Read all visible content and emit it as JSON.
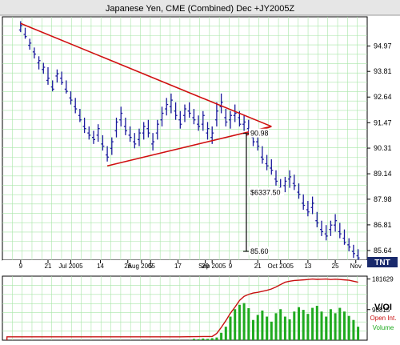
{
  "chart_data": [
    {
      "type": "ohlc",
      "title": "Japanese Yen, CME (Combined) Dec +JY2005Z",
      "logo": "TNT",
      "y_ticks": [
        "94.97",
        "93.81",
        "92.64",
        "91.47",
        "90.31",
        "89.14",
        "87.98",
        "86.81",
        "85.64"
      ],
      "y_tick_values": [
        94.97,
        93.81,
        92.64,
        91.47,
        90.31,
        89.14,
        87.98,
        86.81,
        85.64
      ],
      "ylim": [
        85.2,
        96.3
      ],
      "x_ticks": [
        {
          "label": "9",
          "day": 0
        },
        {
          "label": "21",
          "day": 12
        },
        {
          "label": "Jul 2005",
          "day": 22
        },
        {
          "label": "14",
          "day": 35
        },
        {
          "label": "26",
          "day": 47
        },
        {
          "label": "Aug 2005",
          "day": 53
        },
        {
          "label": "5",
          "day": 57
        },
        {
          "label": "17",
          "day": 69
        },
        {
          "label": "29",
          "day": 81
        },
        {
          "label": "9",
          "day": 92
        },
        {
          "label": "Sep 2005",
          "day": 84
        },
        {
          "label": "21",
          "day": 104
        },
        {
          "label": "Oct 2005",
          "day": 114
        },
        {
          "label": "13",
          "day": 126
        },
        {
          "label": "25",
          "day": 138
        },
        {
          "label": "Nov",
          "day": 147
        }
      ],
      "xlim": [
        -8,
        152
      ],
      "grid": true,
      "colors": {
        "bars": "#1a1a9c",
        "grid": "#a8e6a8",
        "trendline": "#d01010",
        "frame": "#000000"
      },
      "ohlc": [
        [
          0,
          95.7,
          96.1,
          95.6,
          95.9
        ],
        [
          2,
          95.5,
          95.8,
          95.3,
          95.4
        ],
        [
          4,
          95.0,
          95.3,
          94.8,
          95.1
        ],
        [
          6,
          94.7,
          94.9,
          94.4,
          94.6
        ],
        [
          8,
          94.2,
          94.5,
          93.9,
          94.3
        ],
        [
          10,
          93.9,
          94.2,
          93.7,
          94.0
        ],
        [
          12,
          93.4,
          94.0,
          93.2,
          93.5
        ],
        [
          14,
          93.1,
          93.4,
          92.9,
          93.0
        ],
        [
          16,
          93.6,
          93.9,
          93.3,
          93.7
        ],
        [
          18,
          93.5,
          93.8,
          93.2,
          93.3
        ],
        [
          20,
          93.0,
          93.4,
          92.8,
          92.9
        ],
        [
          22,
          92.6,
          92.9,
          92.3,
          92.5
        ],
        [
          24,
          92.2,
          92.6,
          91.9,
          92.1
        ],
        [
          26,
          91.8,
          92.1,
          91.5,
          91.6
        ],
        [
          28,
          91.3,
          91.7,
          91.0,
          91.2
        ],
        [
          30,
          91.0,
          91.3,
          90.7,
          90.9
        ],
        [
          32,
          90.8,
          91.1,
          90.5,
          90.7
        ],
        [
          34,
          90.9,
          91.4,
          90.6,
          91.2
        ],
        [
          36,
          90.5,
          90.9,
          90.2,
          90.4
        ],
        [
          38,
          90.0,
          90.4,
          89.7,
          89.9
        ],
        [
          40,
          90.3,
          90.8,
          90.0,
          90.6
        ],
        [
          42,
          91.1,
          91.7,
          90.8,
          91.5
        ],
        [
          44,
          91.6,
          92.2,
          91.3,
          91.9
        ],
        [
          46,
          91.3,
          91.7,
          90.9,
          91.1
        ],
        [
          48,
          90.9,
          91.3,
          90.6,
          90.8
        ],
        [
          50,
          90.6,
          91.0,
          90.3,
          90.5
        ],
        [
          52,
          90.7,
          91.2,
          90.4,
          91.0
        ],
        [
          54,
          91.0,
          91.5,
          90.7,
          91.3
        ],
        [
          56,
          91.2,
          91.6,
          90.8,
          91.0
        ],
        [
          58,
          90.5,
          91.0,
          90.2,
          90.6
        ],
        [
          60,
          91.0,
          91.6,
          90.7,
          91.4
        ],
        [
          62,
          91.6,
          92.2,
          91.3,
          91.9
        ],
        [
          64,
          92.1,
          92.6,
          91.8,
          92.3
        ],
        [
          66,
          92.2,
          92.8,
          91.9,
          92.5
        ],
        [
          68,
          92.0,
          92.4,
          91.6,
          91.8
        ],
        [
          70,
          91.6,
          92.0,
          91.2,
          91.4
        ],
        [
          72,
          91.8,
          92.3,
          91.5,
          92.1
        ],
        [
          74,
          92.0,
          92.4,
          91.7,
          91.9
        ],
        [
          76,
          91.7,
          92.1,
          91.4,
          91.6
        ],
        [
          78,
          91.4,
          91.8,
          91.1,
          91.3
        ],
        [
          80,
          91.4,
          92.0,
          91.1,
          91.8
        ],
        [
          82,
          91.0,
          91.5,
          90.7,
          91.2
        ],
        [
          84,
          90.8,
          91.3,
          90.5,
          91.0
        ],
        [
          86,
          91.6,
          92.4,
          91.3,
          92.0
        ],
        [
          88,
          92.2,
          92.8,
          91.9,
          92.4
        ],
        [
          90,
          91.7,
          92.1,
          91.3,
          91.5
        ],
        [
          92,
          91.6,
          92.0,
          91.2,
          91.8
        ],
        [
          94,
          91.8,
          92.3,
          91.5,
          91.9
        ],
        [
          96,
          91.7,
          92.0,
          91.3,
          91.4
        ],
        [
          98,
          91.4,
          91.8,
          91.1,
          91.5
        ],
        [
          100,
          91.2,
          91.6,
          90.9,
          91.0
        ],
        [
          102,
          90.8,
          91.1,
          90.4,
          90.6
        ],
        [
          104,
          90.6,
          90.9,
          90.2,
          90.4
        ],
        [
          106,
          89.9,
          90.4,
          89.6,
          89.8
        ],
        [
          108,
          89.6,
          90.0,
          89.3,
          89.5
        ],
        [
          110,
          89.4,
          89.8,
          89.1,
          89.3
        ],
        [
          112,
          88.9,
          89.3,
          88.6,
          88.8
        ],
        [
          114,
          88.5,
          88.9,
          88.2,
          88.4
        ],
        [
          116,
          88.6,
          89.0,
          88.3,
          88.8
        ],
        [
          118,
          88.9,
          89.3,
          88.5,
          89.0
        ],
        [
          120,
          88.7,
          89.1,
          88.4,
          88.6
        ],
        [
          122,
          88.3,
          88.7,
          88.0,
          88.2
        ],
        [
          124,
          87.8,
          88.2,
          87.5,
          87.7
        ],
        [
          126,
          87.5,
          87.9,
          87.2,
          87.4
        ],
        [
          128,
          87.6,
          88.1,
          87.3,
          87.8
        ],
        [
          130,
          87.0,
          87.4,
          86.7,
          86.9
        ],
        [
          132,
          86.6,
          87.0,
          86.3,
          86.5
        ],
        [
          134,
          86.4,
          86.8,
          86.1,
          86.3
        ],
        [
          136,
          86.6,
          87.0,
          86.3,
          86.8
        ],
        [
          138,
          86.8,
          87.3,
          86.5,
          87.0
        ],
        [
          140,
          86.5,
          86.9,
          86.2,
          86.4
        ],
        [
          142,
          86.2,
          86.6,
          85.9,
          86.0
        ],
        [
          144,
          85.9,
          86.2,
          85.6,
          85.8
        ],
        [
          146,
          85.6,
          85.9,
          85.3,
          85.5
        ],
        [
          148,
          85.4,
          85.7,
          85.1,
          85.3
        ]
      ],
      "trendlines": [
        {
          "from": [
            0,
            96.0
          ],
          "to": [
            110,
            91.3
          ]
        },
        {
          "from": [
            38,
            89.5
          ],
          "to": [
            110,
            91.3
          ]
        },
        {
          "from": [
            99,
            90.9
          ],
          "to": [
            110,
            91.3
          ]
        }
      ],
      "measure": {
        "day": 99,
        "from": 90.98,
        "to": 85.6,
        "top_label": "90.98",
        "bottom_label": "85.60",
        "range_label": "$6337.50"
      }
    },
    {
      "type": "volume_oi",
      "title": "V/OI",
      "legend": [
        "Open Int.",
        "Volume"
      ],
      "y_ticks": [
        "181629",
        "90815"
      ],
      "y_tick_values": [
        181629,
        90815
      ],
      "ylim": [
        0,
        190000
      ],
      "colors": {
        "volume": "#1faa1f",
        "open_interest": "#c81010"
      },
      "open_interest": [
        [
          -6,
          0
        ],
        [
          -6,
          10000
        ],
        [
          10,
          10000
        ],
        [
          40,
          10000
        ],
        [
          70,
          10000
        ],
        [
          84,
          11000
        ],
        [
          86,
          20000
        ],
        [
          88,
          38000
        ],
        [
          90,
          58000
        ],
        [
          92,
          80000
        ],
        [
          94,
          98000
        ],
        [
          96,
          118000
        ],
        [
          98,
          130000
        ],
        [
          100,
          136000
        ],
        [
          102,
          140000
        ],
        [
          104,
          142000
        ],
        [
          106,
          145000
        ],
        [
          108,
          148000
        ],
        [
          110,
          152000
        ],
        [
          112,
          158000
        ],
        [
          114,
          165000
        ],
        [
          116,
          172000
        ],
        [
          118,
          175000
        ],
        [
          120,
          177000
        ],
        [
          122,
          178000
        ],
        [
          124,
          179000
        ],
        [
          126,
          180000
        ],
        [
          128,
          181629
        ],
        [
          130,
          180500
        ],
        [
          132,
          181000
        ],
        [
          134,
          181629
        ],
        [
          136,
          180000
        ],
        [
          138,
          181000
        ],
        [
          140,
          180000
        ],
        [
          142,
          179000
        ],
        [
          144,
          178000
        ],
        [
          146,
          175000
        ],
        [
          148,
          172000
        ]
      ],
      "volume": [
        [
          76,
          4000
        ],
        [
          78,
          3000
        ],
        [
          80,
          5000
        ],
        [
          82,
          4000
        ],
        [
          84,
          6000
        ],
        [
          86,
          8000
        ],
        [
          88,
          22000
        ],
        [
          90,
          40000
        ],
        [
          92,
          70000
        ],
        [
          94,
          92000
        ],
        [
          96,
          105000
        ],
        [
          98,
          110000
        ],
        [
          100,
          95000
        ],
        [
          102,
          60000
        ],
        [
          104,
          75000
        ],
        [
          106,
          88000
        ],
        [
          108,
          70000
        ],
        [
          110,
          55000
        ],
        [
          112,
          80000
        ],
        [
          114,
          92000
        ],
        [
          116,
          70000
        ],
        [
          118,
          62000
        ],
        [
          120,
          85000
        ],
        [
          122,
          98000
        ],
        [
          124,
          90000
        ],
        [
          126,
          78000
        ],
        [
          128,
          96000
        ],
        [
          130,
          102000
        ],
        [
          132,
          85000
        ],
        [
          134,
          70000
        ],
        [
          136,
          92000
        ],
        [
          138,
          80000
        ],
        [
          140,
          96000
        ],
        [
          142,
          85000
        ],
        [
          144,
          72000
        ],
        [
          146,
          60000
        ],
        [
          148,
          40000
        ]
      ]
    }
  ]
}
